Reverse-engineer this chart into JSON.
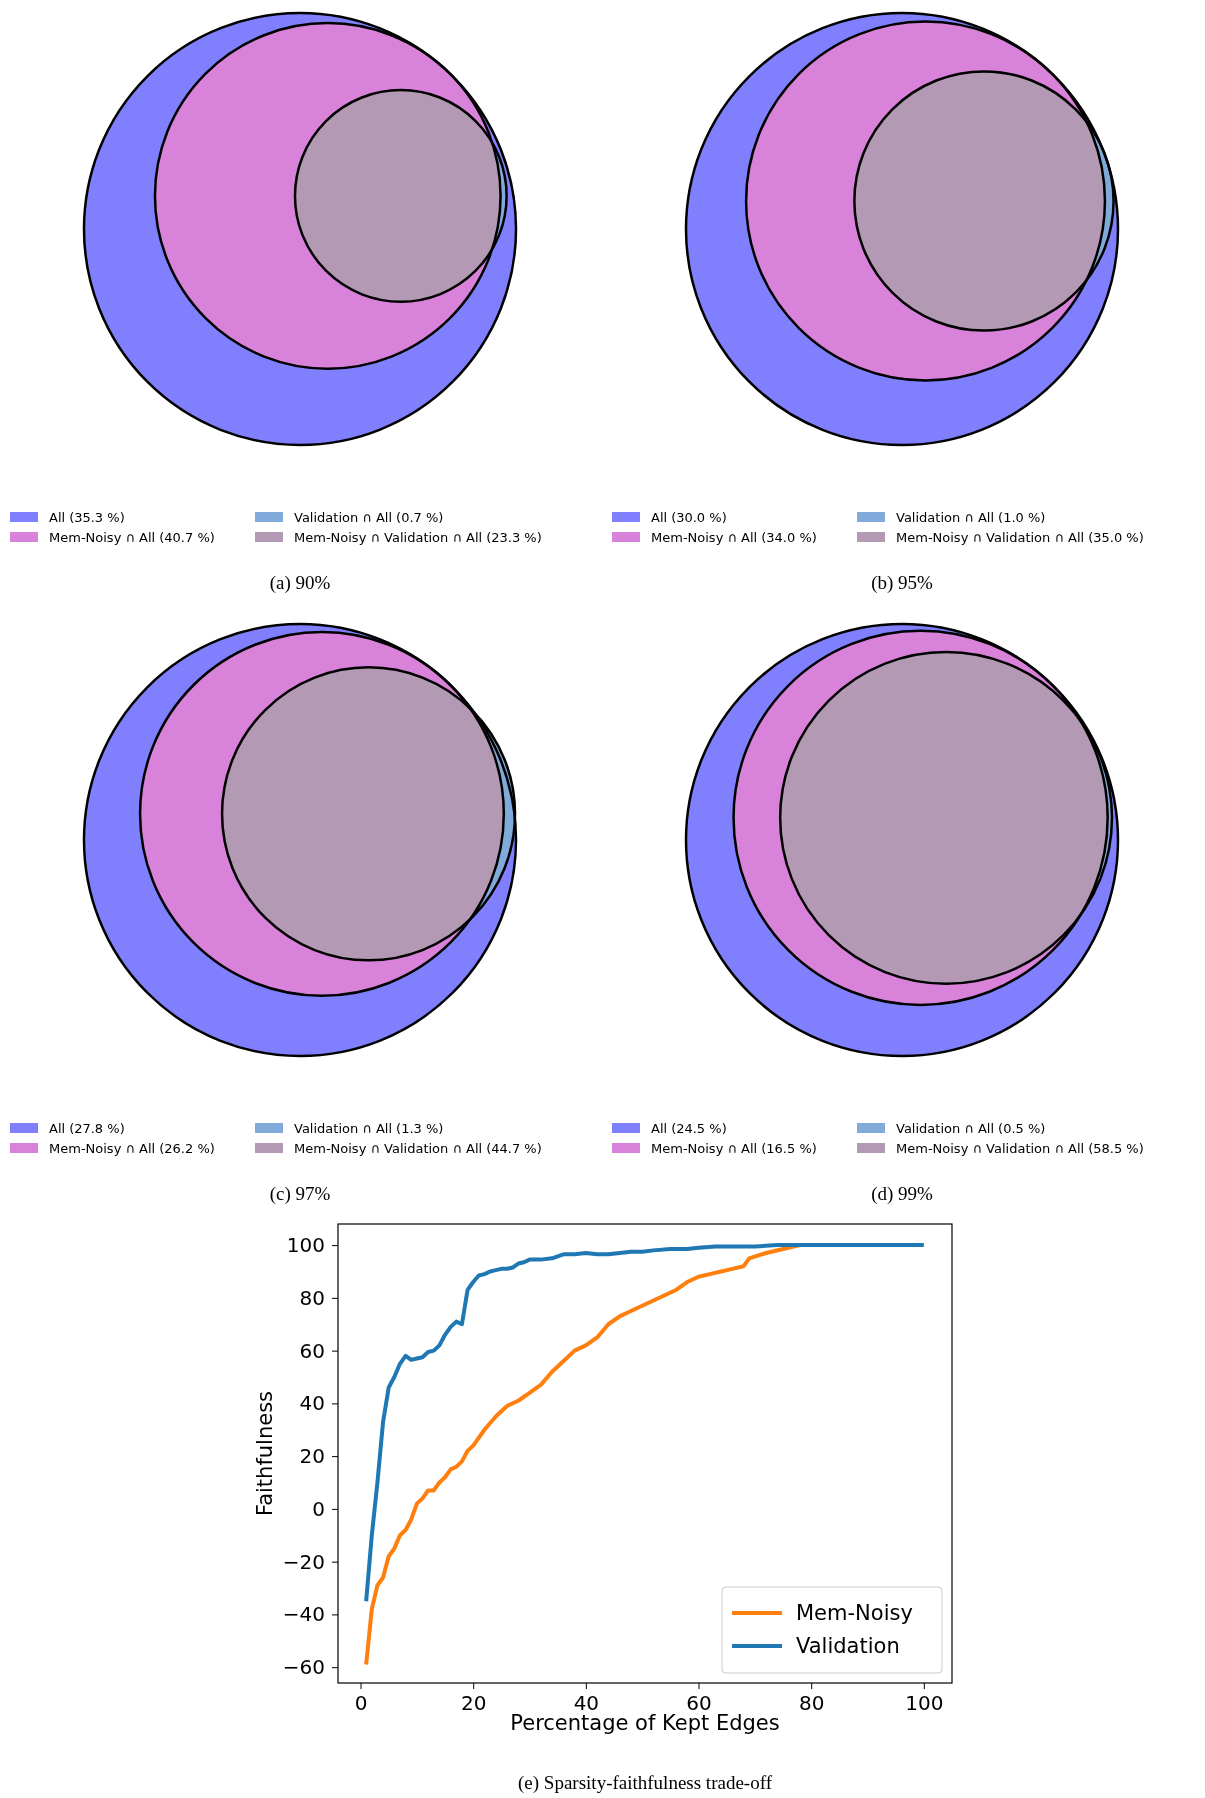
{
  "chart_data": [
    {
      "type": "other",
      "title": "(a) 90%",
      "categories": [
        "All",
        "Mem-Noisy ∩ All",
        "Validation ∩ All",
        "Mem-Noisy ∩ Validation ∩ All"
      ],
      "values": [
        35.3,
        40.7,
        0.7,
        23.3
      ],
      "value_labels": [
        "(35.3 %)",
        "(40.7 %)",
        "(0.7 %)",
        "(23.3 %)"
      ],
      "colors": [
        "#8080ff",
        "#d982d9",
        "#80aad9",
        "#b399b3"
      ]
    },
    {
      "type": "other",
      "title": "(b) 95%",
      "categories": [
        "All",
        "Mem-Noisy ∩ All",
        "Validation ∩ All",
        "Mem-Noisy ∩ Validation ∩ All"
      ],
      "values": [
        30.0,
        34.0,
        1.0,
        35.0
      ],
      "value_labels": [
        "(30.0 %)",
        "(34.0 %)",
        "(1.0 %)",
        "(35.0 %)"
      ],
      "colors": [
        "#8080ff",
        "#d982d9",
        "#80aad9",
        "#b399b3"
      ]
    },
    {
      "type": "other",
      "title": "(c) 97%",
      "categories": [
        "All",
        "Mem-Noisy ∩ All",
        "Validation ∩ All",
        "Mem-Noisy ∩ Validation ∩ All"
      ],
      "values": [
        27.8,
        26.2,
        1.3,
        44.7
      ],
      "value_labels": [
        "(27.8 %)",
        "(26.2 %)",
        "(1.3 %)",
        "(44.7 %)"
      ],
      "colors": [
        "#8080ff",
        "#d982d9",
        "#80aad9",
        "#b399b3"
      ]
    },
    {
      "type": "other",
      "title": "(d) 99%",
      "categories": [
        "All",
        "Mem-Noisy ∩ All",
        "Validation ∩ All",
        "Mem-Noisy ∩ Validation ∩ All"
      ],
      "values": [
        24.5,
        16.5,
        0.5,
        58.5
      ],
      "value_labels": [
        "(24.5 %)",
        "(16.5 %)",
        "(0.5 %)",
        "(58.5 %)"
      ],
      "colors": [
        "#8080ff",
        "#d982d9",
        "#80aad9",
        "#b399b3"
      ]
    },
    {
      "type": "line",
      "title": "(e) Sparsity-faithfulness trade-off",
      "xlabel": "Percentage of Kept Edges",
      "ylabel": "Faithfulness",
      "xlim": [
        -4,
        105
      ],
      "ylim": [
        -66,
        108
      ],
      "xticks": [
        0,
        20,
        40,
        60,
        80,
        100
      ],
      "yticks": [
        {
          "value": -60,
          "label": "−60"
        },
        {
          "value": -40,
          "label": "−40"
        },
        {
          "value": -20,
          "label": "−20"
        },
        0,
        20,
        40,
        60,
        80,
        100
      ],
      "legend": "bottom right",
      "series": [
        {
          "name": "Mem-Noisy",
          "color": "#ff7f0e",
          "x": [
            1,
            2,
            3,
            4,
            5,
            6,
            7,
            8,
            9,
            10,
            11,
            12,
            13,
            14,
            15,
            16,
            17,
            18,
            19,
            20,
            22,
            24,
            26,
            28,
            30,
            32,
            34,
            36,
            38,
            40,
            42,
            44,
            46,
            48,
            50,
            52,
            54,
            56,
            58,
            60,
            62,
            64,
            66,
            68,
            69,
            72,
            75,
            78
          ],
          "values": [
            -59,
            -38,
            -29,
            -26,
            -18,
            -15,
            -10,
            -8,
            -4,
            2,
            4,
            7,
            7,
            10,
            12,
            15,
            16,
            18,
            22,
            24,
            30,
            35,
            39,
            41,
            44,
            47,
            52,
            56,
            60,
            62,
            65,
            70,
            73,
            75,
            77,
            79,
            81,
            83,
            86,
            88,
            89,
            90,
            91,
            92,
            95,
            97,
            98.5,
            100
          ]
        },
        {
          "name": "Validation",
          "color": "#1f77b4",
          "x": [
            1,
            2,
            3,
            4,
            5,
            6,
            7,
            8,
            9,
            10,
            11,
            12,
            13,
            14,
            15,
            16,
            17,
            18,
            19,
            20,
            21,
            22,
            23,
            24,
            25,
            26,
            27,
            28,
            29,
            30,
            32,
            34,
            36,
            38,
            40,
            42,
            44,
            46,
            48,
            50,
            52,
            55,
            58,
            60,
            63,
            66,
            70,
            74,
            78,
            80,
            90,
            100
          ],
          "values": [
            -35,
            -10,
            10,
            33,
            46,
            50,
            55,
            58,
            56.5,
            57,
            57.5,
            59.5,
            60,
            62,
            66,
            69,
            71,
            70,
            83,
            86,
            88.5,
            89,
            90,
            90.5,
            91,
            91,
            91.5,
            93,
            93.5,
            94.5,
            94.5,
            95,
            96.5,
            96.5,
            97,
            96.5,
            96.5,
            97,
            97.5,
            97.5,
            98,
            98.5,
            98.5,
            99,
            99.5,
            99.5,
            99.5,
            100,
            100,
            100,
            100,
            100
          ]
        }
      ]
    }
  ]
}
